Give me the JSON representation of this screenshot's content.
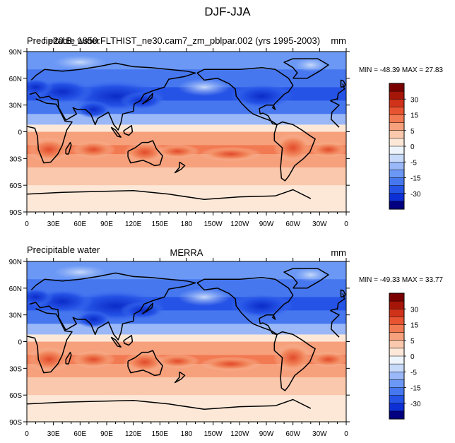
{
  "figure": {
    "title": "DJF-JJA"
  },
  "colorbar_levels": [
    "30",
    "15",
    "5",
    "0",
    "-5",
    "-15",
    "-30"
  ],
  "colors": {
    "background": "#ffffff",
    "ocean_blue": "#4f7fef",
    "land_outline": "#000000",
    "palette": [
      "#000080",
      "#0d2fd6",
      "#2553e6",
      "#4677ef",
      "#6b98f5",
      "#9ab8f8",
      "#c8daf9",
      "#eef4fc",
      "#fde8d8",
      "#fac8ac",
      "#f6a07c",
      "#f27a52",
      "#e85431",
      "#d1321a",
      "#a51508",
      "#7a0000"
    ]
  },
  "panels": [
    {
      "left_title": "Precipitable water",
      "center_title": "f.e20.B_1850.FLTHIST_ne30.cam7_zm_pblpar.002 (yrs 1995-2003)",
      "right_title": "mm",
      "stats": "MIN = -48.39 MAX =  27.83"
    },
    {
      "left_title": "Precipitable water",
      "center_title": "MERRA",
      "right_title": "mm",
      "stats": "MIN = -49.33 MAX =  33.77"
    }
  ],
  "chart_data": [
    {
      "type": "heatmap",
      "subtype": "global lat-lon contour map (DJF minus JJA)",
      "title": "Precipitable water",
      "center_title": "f.e20.B_1850.FLTHIST_ne30.cam7_zm_pblpar.002 (yrs 1995-2003)",
      "units": "mm",
      "x_ticks": [
        "0",
        "30E",
        "60E",
        "90E",
        "120E",
        "150E",
        "180",
        "150W",
        "120W",
        "90W",
        "60W",
        "30W",
        "0"
      ],
      "y_ticks": [
        "90N",
        "60N",
        "30N",
        "0",
        "30S",
        "60S",
        "90S"
      ],
      "xlim": [
        0,
        360
      ],
      "ylim": [
        -90,
        90
      ],
      "min": -48.39,
      "max": 27.83,
      "colorbar_levels": [
        30,
        15,
        5,
        0,
        -5,
        -15,
        -30
      ],
      "zonal_mean_approx": [
        {
          "lat": 90,
          "value": -10
        },
        {
          "lat": 70,
          "value": -12
        },
        {
          "lat": 50,
          "value": -18
        },
        {
          "lat": 35,
          "value": -22
        },
        {
          "lat": 20,
          "value": -15
        },
        {
          "lat": 8,
          "value": -3
        },
        {
          "lat": 0,
          "value": 4
        },
        {
          "lat": -15,
          "value": 12
        },
        {
          "lat": -25,
          "value": 10
        },
        {
          "lat": -40,
          "value": 6
        },
        {
          "lat": -60,
          "value": 3
        },
        {
          "lat": -90,
          "value": 1
        }
      ]
    },
    {
      "type": "heatmap",
      "subtype": "global lat-lon contour map (DJF minus JJA)",
      "title": "Precipitable water",
      "center_title": "MERRA",
      "units": "mm",
      "x_ticks": [
        "0",
        "30E",
        "60E",
        "90E",
        "120E",
        "150E",
        "180",
        "150W",
        "120W",
        "90W",
        "60W",
        "30W",
        "0"
      ],
      "y_ticks": [
        "90N",
        "60N",
        "30N",
        "0",
        "30S",
        "60S",
        "90S"
      ],
      "xlim": [
        0,
        360
      ],
      "ylim": [
        -90,
        90
      ],
      "min": -49.33,
      "max": 33.77,
      "colorbar_levels": [
        30,
        15,
        5,
        0,
        -5,
        -15,
        -30
      ],
      "zonal_mean_approx": [
        {
          "lat": 90,
          "value": -10
        },
        {
          "lat": 70,
          "value": -12
        },
        {
          "lat": 50,
          "value": -18
        },
        {
          "lat": 35,
          "value": -22
        },
        {
          "lat": 20,
          "value": -14
        },
        {
          "lat": 8,
          "value": -2
        },
        {
          "lat": 0,
          "value": 4
        },
        {
          "lat": -15,
          "value": 12
        },
        {
          "lat": -25,
          "value": 10
        },
        {
          "lat": -40,
          "value": 6
        },
        {
          "lat": -60,
          "value": 3
        },
        {
          "lat": -90,
          "value": 1
        }
      ]
    }
  ]
}
